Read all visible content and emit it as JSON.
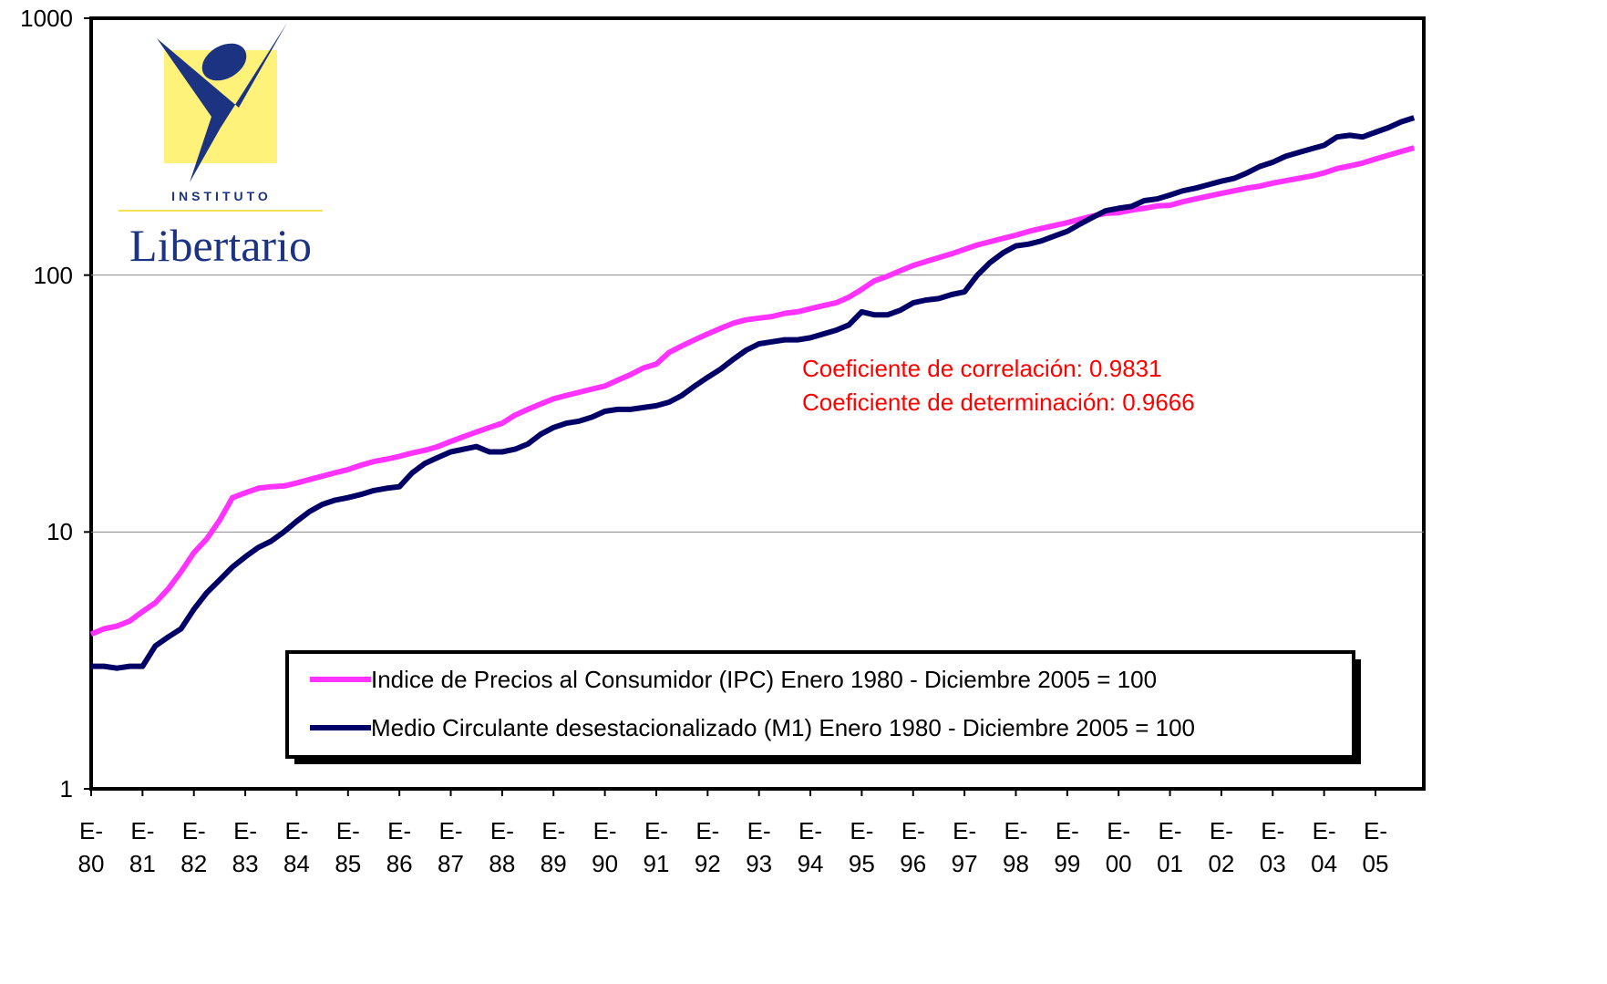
{
  "chart_data": {
    "type": "line",
    "logo": [
      "INSTITUTO",
      "Libertario"
    ],
    "annotations": [
      "Coeficiente de correlación: 0.9831",
      "Coeficiente de determinación: 0.9666"
    ],
    "categories": [
      "E- 80",
      null,
      null,
      null,
      "E- 81",
      null,
      null,
      null,
      "E- 82",
      null,
      null,
      null,
      "E- 83",
      null,
      null,
      null,
      "E- 84",
      null,
      null,
      null,
      "E- 85",
      null,
      null,
      null,
      "E- 86",
      null,
      null,
      null,
      "E- 87",
      null,
      null,
      null,
      "E- 88",
      null,
      null,
      null,
      "E- 89",
      null,
      null,
      null,
      "E- 90",
      null,
      null,
      null,
      "E- 91",
      null,
      null,
      null,
      "E- 92",
      null,
      null,
      null,
      "E- 93",
      null,
      null,
      null,
      "E- 94",
      null,
      null,
      null,
      "E- 95",
      null,
      null,
      null,
      "E- 96",
      null,
      null,
      null,
      "E- 97",
      null,
      null,
      null,
      "E- 98",
      null,
      null,
      null,
      "E- 99",
      null,
      null,
      null,
      "E- 00",
      null,
      null,
      null,
      "E- 01",
      null,
      null,
      null,
      "E- 02",
      null,
      null,
      null,
      "E- 03",
      null,
      null,
      null,
      "E- 04",
      null,
      null,
      null,
      "E- 05",
      null,
      null,
      null
    ],
    "series": [
      {
        "name": "Indice de Precios al Consumidor (IPC) Enero 1980 - Diciembre 2005 = 100",
        "color": "#ff33ff",
        "values": [
          4.0,
          4.2,
          4.3,
          4.5,
          4.9,
          5.3,
          6.0,
          7.0,
          8.3,
          9.4,
          11.1,
          13.6,
          14.2,
          14.8,
          15.0,
          15.1,
          15.5,
          16.0,
          16.5,
          17.0,
          17.5,
          18.2,
          18.8,
          19.2,
          19.7,
          20.3,
          20.8,
          21.5,
          22.5,
          23.5,
          24.5,
          25.5,
          26.5,
          28.5,
          30,
          31.5,
          33,
          34,
          35,
          36,
          37,
          39,
          41,
          43.5,
          45,
          50,
          53,
          56,
          59,
          62,
          65,
          67,
          68,
          69,
          71,
          72,
          74,
          76,
          78,
          82,
          88,
          95,
          99,
          104,
          109,
          113,
          117,
          121,
          126,
          131,
          135,
          139,
          143,
          148,
          152,
          156,
          160,
          165,
          170,
          174,
          175,
          179,
          182,
          186,
          187,
          193,
          198,
          203,
          208,
          213,
          218,
          222,
          228,
          233,
          238,
          243,
          250,
          260,
          266,
          273,
          283,
          293,
          303,
          313
        ]
      },
      {
        "name": "Medio Circulante desestacionalizado (M1) Enero 1980 - Diciembre 2005 = 100",
        "color": "#000066",
        "values": [
          3.0,
          3.0,
          2.95,
          3.0,
          3.0,
          3.6,
          3.9,
          4.2,
          5.0,
          5.8,
          6.5,
          7.3,
          8.0,
          8.7,
          9.2,
          10,
          11,
          12,
          12.8,
          13.3,
          13.6,
          14,
          14.5,
          14.8,
          15,
          17,
          18.5,
          19.5,
          20.5,
          21,
          21.5,
          20.5,
          20.5,
          21,
          22,
          24,
          25.5,
          26.5,
          27,
          28,
          29.5,
          30,
          30,
          30.5,
          31,
          32,
          34,
          37,
          40,
          43,
          47,
          51,
          54,
          55,
          56,
          56,
          57,
          59,
          61,
          64,
          72,
          70,
          70,
          73,
          78,
          80,
          81,
          84,
          86,
          100,
          112,
          122,
          130,
          132,
          136,
          142,
          148,
          158,
          168,
          178,
          182,
          185,
          195,
          198,
          205,
          213,
          218,
          225,
          232,
          238,
          250,
          265,
          275,
          290,
          300,
          310,
          320,
          345,
          350,
          345,
          360,
          375,
          395,
          410
        ]
      }
    ],
    "ylim": [
      1,
      1000
    ],
    "yticks": [
      1,
      10,
      100,
      1000
    ],
    "log_y": true,
    "grid": true,
    "legend": "bottom-right"
  }
}
